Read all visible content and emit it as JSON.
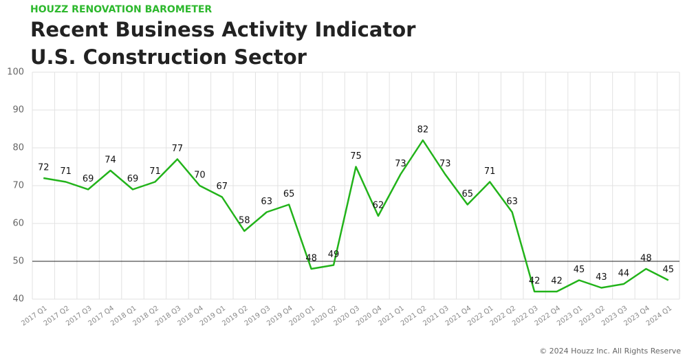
{
  "chart_data": {
    "type": "line",
    "kicker": "HOUZZ RENOVATION BAROMETER",
    "title": "Recent Business Activity Indicator",
    "subtitle": "U.S. Construction Sector",
    "copyright": "© 2024 Houzz Inc. All Rights Reserve",
    "categories": [
      "2017 Q1",
      "2017 Q2",
      "2017 Q3",
      "2017 Q4",
      "2018 Q1",
      "2018 Q2",
      "2018 Q3",
      "2018 Q4",
      "2019 Q1",
      "2019 Q2",
      "2019 Q3",
      "2019 Q4",
      "2020 Q1",
      "2020 Q2",
      "2020 Q3",
      "2020 Q4",
      "2021 Q1",
      "2021 Q2",
      "2021 Q3",
      "2021 Q4",
      "2022 Q1",
      "2022 Q2",
      "2022 Q3",
      "2022 Q4",
      "2023 Q1",
      "2023 Q2",
      "2023 Q3",
      "2023 Q4",
      "2024 Q1"
    ],
    "values": [
      72,
      71,
      69,
      74,
      69,
      71,
      77,
      70,
      67,
      58,
      63,
      65,
      48,
      49,
      75,
      62,
      73,
      82,
      73,
      65,
      71,
      63,
      42,
      42,
      45,
      43,
      44,
      48,
      45
    ],
    "color": "#22b31a",
    "ylim": [
      40,
      100
    ],
    "yticks": [
      40,
      50,
      60,
      70,
      80,
      90,
      100
    ],
    "reference_line": 50,
    "grid": true
  }
}
